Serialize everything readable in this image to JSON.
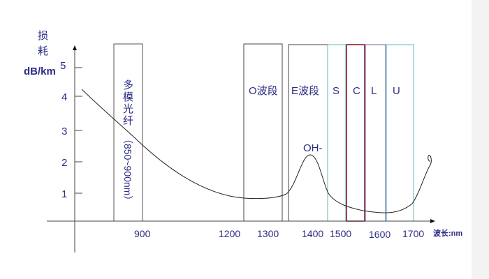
{
  "y_axis": {
    "label_line1": "损",
    "label_line2": "耗",
    "unit": "dB/km",
    "ticks": [
      "5",
      "4",
      "3",
      "2",
      "1"
    ]
  },
  "x_axis": {
    "ticks": [
      "900",
      "1200",
      "1300",
      "1400",
      "1500",
      "1600",
      "1700"
    ],
    "unit_label": "波长:nm"
  },
  "bands": [
    {
      "label": "多模光纤",
      "sublabel": "（850~900nm）",
      "color": "#555555"
    },
    {
      "label": "O波段",
      "color": "#444444"
    },
    {
      "label": "E波段",
      "color": "#444444"
    },
    {
      "label": "S",
      "color": "#5fb8b8"
    },
    {
      "label": "C",
      "color": "#8b2030"
    },
    {
      "label": "L",
      "color": "#6a6aa8"
    },
    {
      "label": "U",
      "color": "#5fb8b8"
    }
  ],
  "annotation": "OH-",
  "text_color": "#2b2b86"
}
